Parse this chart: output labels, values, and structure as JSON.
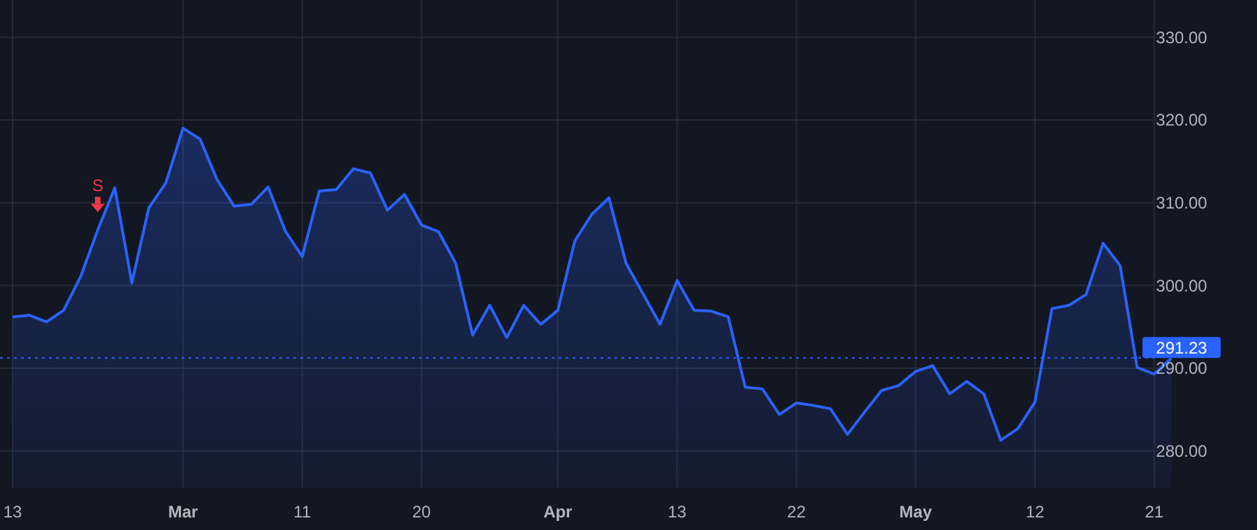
{
  "chart_data": {
    "type": "area",
    "categories": [
      "13",
      null,
      null,
      null,
      null,
      null,
      null,
      null,
      null,
      null,
      "Mar",
      null,
      null,
      null,
      null,
      null,
      null,
      "11",
      null,
      null,
      null,
      null,
      null,
      null,
      "20",
      null,
      null,
      null,
      null,
      null,
      null,
      null,
      "Apr",
      null,
      null,
      null,
      null,
      null,
      null,
      "13",
      null,
      null,
      null,
      null,
      null,
      null,
      "22",
      null,
      null,
      null,
      null,
      null,
      null,
      "May",
      null,
      null,
      null,
      null,
      null,
      null,
      "12",
      null,
      null,
      null,
      null,
      null,
      null,
      "21",
      null
    ],
    "series": [
      {
        "color": "#2962ff",
        "values": [
          296.2,
          296.4,
          295.6,
          297.0,
          301.1,
          306.7,
          311.8,
          300.3,
          309.4,
          312.4,
          319.0,
          317.7,
          312.8,
          309.6,
          309.8,
          311.9,
          306.6,
          303.5,
          311.4,
          311.6,
          314.1,
          313.6,
          309.1,
          311.0,
          307.3,
          306.5,
          302.7,
          294.0,
          297.6,
          293.7,
          297.6,
          295.3,
          297.0,
          305.4,
          308.6,
          310.6,
          302.7,
          299.0,
          295.3,
          300.6,
          297.0,
          296.9,
          296.2,
          287.7,
          287.5,
          284.4,
          285.8,
          285.5,
          285.1,
          282.0,
          284.7,
          287.3,
          287.9,
          289.6,
          290.3,
          286.9,
          288.4,
          286.9,
          281.3,
          282.7,
          285.9,
          297.2,
          297.6,
          298.9,
          305.1,
          302.4,
          290.1,
          289.3,
          291.2
        ]
      }
    ],
    "ylim": [
      275.5,
      334.5
    ],
    "yticks": [
      {
        "value": 280,
        "label": "280.00"
      },
      {
        "value": 290,
        "label": "290.00"
      },
      {
        "value": 300,
        "label": "300.00"
      },
      {
        "value": 310,
        "label": "310.00"
      },
      {
        "value": 320,
        "label": "320.00"
      },
      {
        "value": 330,
        "label": "330.00"
      }
    ],
    "ref_lines": [
      {
        "axis": "y",
        "value": 291.23,
        "label": "291.23",
        "color": "#2962ff",
        "line_style": "dotted"
      }
    ],
    "annotations": [
      {
        "text": "S",
        "y": 306.5
      }
    ],
    "grid": true,
    "marker": "none",
    "line_style": "solid"
  }
}
